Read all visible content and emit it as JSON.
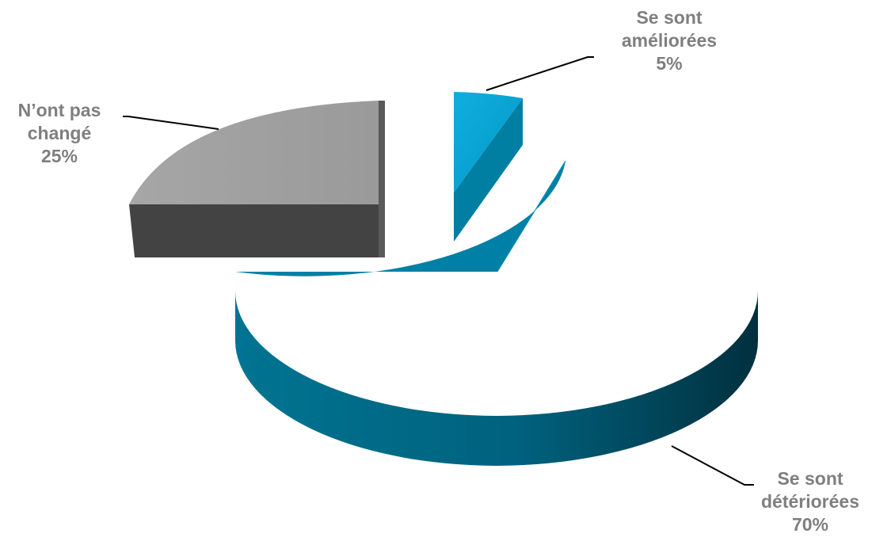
{
  "chart_data": {
    "type": "pie",
    "style": "3d-exploded",
    "slices": [
      {
        "label_lines": [
          "Se sont",
          "améliorées"
        ],
        "value": 5,
        "value_label": "5%",
        "color": "#00A0D0"
      },
      {
        "label_lines": [
          "Se sont",
          "détériorées"
        ],
        "value": 70,
        "value_label": "70%",
        "color": "#007EA3"
      },
      {
        "label_lines": [
          "N’ont pas",
          "changé"
        ],
        "value": 25,
        "value_label": "25%",
        "color": "#A0A0A0"
      }
    ],
    "legend": "none",
    "label_color": "#7F7F7F"
  }
}
